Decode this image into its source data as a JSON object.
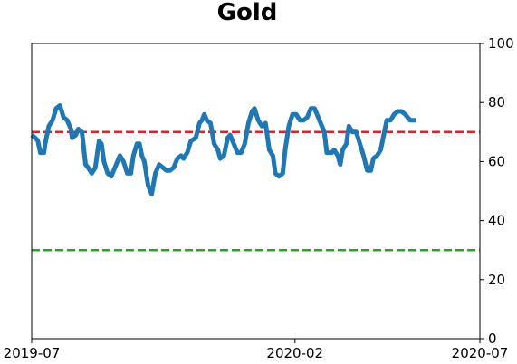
{
  "chart_data": {
    "type": "line",
    "title": "Gold",
    "xlabel": "",
    "ylabel": "",
    "x_range": [
      "2019-07-01",
      "2020-07-01"
    ],
    "x_ticks": [
      {
        "date": "2019-07-01",
        "label": "2019-07"
      },
      {
        "date": "2020-02-01",
        "label": "2020-02"
      },
      {
        "date": "2020-07-01",
        "label": "2020-07"
      }
    ],
    "ylim": [
      0,
      100
    ],
    "y_ticks": [
      0,
      20,
      40,
      60,
      80,
      100
    ],
    "y_axis_side": "right",
    "grid": false,
    "legend": "none",
    "reference_lines": [
      {
        "y": 70,
        "color": "#d62728",
        "style": "dashed"
      },
      {
        "y": 30,
        "color": "#2ca02c",
        "style": "dashed"
      }
    ],
    "series": [
      {
        "color": "#1f77b4",
        "points": [
          [
            "2019-07-01",
            69
          ],
          [
            "2019-07-04",
            68
          ],
          [
            "2019-07-06",
            67
          ],
          [
            "2019-07-08",
            63
          ],
          [
            "2019-07-11",
            63
          ],
          [
            "2019-07-12",
            66
          ],
          [
            "2019-07-15",
            72
          ],
          [
            "2019-07-18",
            74
          ],
          [
            "2019-07-21",
            78
          ],
          [
            "2019-07-24",
            79
          ],
          [
            "2019-07-27",
            75
          ],
          [
            "2019-07-30",
            74
          ],
          [
            "2019-08-02",
            71
          ],
          [
            "2019-08-03",
            68
          ],
          [
            "2019-08-06",
            69
          ],
          [
            "2019-08-08",
            71
          ],
          [
            "2019-08-11",
            70
          ],
          [
            "2019-08-14",
            59
          ],
          [
            "2019-08-16",
            58
          ],
          [
            "2019-08-19",
            56
          ],
          [
            "2019-08-22",
            58
          ],
          [
            "2019-08-24",
            64
          ],
          [
            "2019-08-25",
            67
          ],
          [
            "2019-08-27",
            66
          ],
          [
            "2019-08-29",
            60
          ],
          [
            "2019-09-01",
            56
          ],
          [
            "2019-09-04",
            55
          ],
          [
            "2019-09-06",
            57
          ],
          [
            "2019-09-09",
            60
          ],
          [
            "2019-09-11",
            62
          ],
          [
            "2019-09-14",
            60
          ],
          [
            "2019-09-17",
            56
          ],
          [
            "2019-09-20",
            56
          ],
          [
            "2019-09-22",
            62
          ],
          [
            "2019-09-25",
            66
          ],
          [
            "2019-09-27",
            66
          ],
          [
            "2019-09-29",
            62
          ],
          [
            "2019-10-01",
            60
          ],
          [
            "2019-10-04",
            52
          ],
          [
            "2019-10-07",
            49
          ],
          [
            "2019-10-10",
            56
          ],
          [
            "2019-10-13",
            59
          ],
          [
            "2019-10-16",
            58
          ],
          [
            "2019-10-19",
            57
          ],
          [
            "2019-10-22",
            57
          ],
          [
            "2019-10-25",
            58
          ],
          [
            "2019-10-28",
            61
          ],
          [
            "2019-10-31",
            62
          ],
          [
            "2019-11-02",
            61
          ],
          [
            "2019-11-05",
            63
          ],
          [
            "2019-11-08",
            67
          ],
          [
            "2019-11-12",
            68
          ],
          [
            "2019-11-15",
            73
          ],
          [
            "2019-11-17",
            74
          ],
          [
            "2019-11-19",
            76
          ],
          [
            "2019-11-21",
            74
          ],
          [
            "2019-11-24",
            73
          ],
          [
            "2019-11-27",
            66
          ],
          [
            "2019-11-30",
            64
          ],
          [
            "2019-12-02",
            61
          ],
          [
            "2019-12-05",
            62
          ],
          [
            "2019-12-08",
            68
          ],
          [
            "2019-12-10",
            69
          ],
          [
            "2019-12-13",
            66
          ],
          [
            "2019-12-16",
            63
          ],
          [
            "2019-12-19",
            63
          ],
          [
            "2019-12-22",
            66
          ],
          [
            "2019-12-25",
            73
          ],
          [
            "2019-12-28",
            77
          ],
          [
            "2019-12-30",
            78
          ],
          [
            "2020-01-02",
            74
          ],
          [
            "2020-01-05",
            72
          ],
          [
            "2020-01-08",
            73
          ],
          [
            "2020-01-11",
            64
          ],
          [
            "2020-01-14",
            62
          ],
          [
            "2020-01-16",
            56
          ],
          [
            "2020-01-19",
            55
          ],
          [
            "2020-01-22",
            56
          ],
          [
            "2020-01-24",
            64
          ],
          [
            "2020-01-27",
            72
          ],
          [
            "2020-01-30",
            76
          ],
          [
            "2020-02-02",
            76
          ],
          [
            "2020-02-05",
            74
          ],
          [
            "2020-02-08",
            74
          ],
          [
            "2020-02-11",
            75
          ],
          [
            "2020-02-14",
            78
          ],
          [
            "2020-02-17",
            78
          ],
          [
            "2020-02-20",
            75
          ],
          [
            "2020-02-23",
            72
          ],
          [
            "2020-02-25",
            70
          ],
          [
            "2020-02-27",
            63
          ],
          [
            "2020-03-02",
            63
          ],
          [
            "2020-03-04",
            64
          ],
          [
            "2020-03-07",
            62
          ],
          [
            "2020-03-09",
            59
          ],
          [
            "2020-03-11",
            64
          ],
          [
            "2020-03-14",
            66
          ],
          [
            "2020-03-16",
            72
          ],
          [
            "2020-03-19",
            70
          ],
          [
            "2020-03-22",
            70
          ],
          [
            "2020-03-25",
            66
          ],
          [
            "2020-03-28",
            62
          ],
          [
            "2020-03-31",
            57
          ],
          [
            "2020-04-03",
            57
          ],
          [
            "2020-04-05",
            61
          ],
          [
            "2020-04-08",
            62
          ],
          [
            "2020-04-11",
            64
          ],
          [
            "2020-04-14",
            70
          ],
          [
            "2020-04-16",
            74
          ],
          [
            "2020-04-19",
            74
          ],
          [
            "2020-04-22",
            76
          ],
          [
            "2020-04-25",
            77
          ],
          [
            "2020-04-28",
            77
          ],
          [
            "2020-05-01",
            76
          ],
          [
            "2020-05-03",
            75
          ],
          [
            "2020-05-05",
            74
          ],
          [
            "2020-05-10",
            74
          ]
        ]
      }
    ]
  }
}
